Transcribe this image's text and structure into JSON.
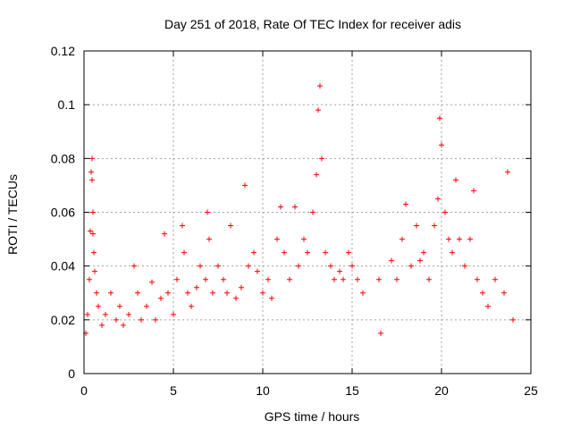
{
  "chart_data": {
    "type": "scatter",
    "title": "Day 251 of 2018, Rate Of TEC Index for receiver adis",
    "xlabel": "GPS time / hours",
    "ylabel": "ROTI / TECUs",
    "xlim": [
      0,
      25
    ],
    "ylim": [
      0,
      0.12
    ],
    "xticks": [
      0,
      5,
      10,
      15,
      20,
      25
    ],
    "xtick_labels": [
      "0",
      "5",
      "10",
      "15",
      "20",
      "25"
    ],
    "yticks": [
      0,
      0.02,
      0.04,
      0.06,
      0.08,
      0.1,
      0.12
    ],
    "ytick_labels": [
      "0",
      "0.02",
      "0.04",
      "0.06",
      "0.08",
      "0.1",
      "0.12"
    ],
    "grid": true,
    "marker": "+",
    "color": "#ff0000",
    "series": [
      {
        "name": "ROTI",
        "points": [
          [
            0.1,
            0.015
          ],
          [
            0.2,
            0.022
          ],
          [
            0.3,
            0.035
          ],
          [
            0.35,
            0.053
          ],
          [
            0.4,
            0.075
          ],
          [
            0.45,
            0.08
          ],
          [
            0.45,
            0.072
          ],
          [
            0.5,
            0.06
          ],
          [
            0.5,
            0.052
          ],
          [
            0.55,
            0.045
          ],
          [
            0.6,
            0.038
          ],
          [
            0.7,
            0.03
          ],
          [
            0.8,
            0.025
          ],
          [
            1.0,
            0.018
          ],
          [
            1.2,
            0.022
          ],
          [
            1.5,
            0.03
          ],
          [
            1.8,
            0.02
          ],
          [
            2.0,
            0.025
          ],
          [
            2.2,
            0.018
          ],
          [
            2.5,
            0.022
          ],
          [
            2.8,
            0.04
          ],
          [
            3.0,
            0.03
          ],
          [
            3.2,
            0.02
          ],
          [
            3.5,
            0.025
          ],
          [
            3.8,
            0.034
          ],
          [
            4.0,
            0.02
          ],
          [
            4.3,
            0.028
          ],
          [
            4.5,
            0.052
          ],
          [
            4.7,
            0.03
          ],
          [
            5.0,
            0.022
          ],
          [
            5.2,
            0.035
          ],
          [
            5.5,
            0.055
          ],
          [
            5.6,
            0.045
          ],
          [
            5.8,
            0.03
          ],
          [
            6.0,
            0.025
          ],
          [
            6.3,
            0.032
          ],
          [
            6.5,
            0.04
          ],
          [
            6.8,
            0.035
          ],
          [
            6.9,
            0.06
          ],
          [
            7.0,
            0.05
          ],
          [
            7.2,
            0.03
          ],
          [
            7.5,
            0.04
          ],
          [
            7.8,
            0.035
          ],
          [
            8.0,
            0.03
          ],
          [
            8.2,
            0.055
          ],
          [
            8.5,
            0.028
          ],
          [
            8.8,
            0.032
          ],
          [
            9.0,
            0.07
          ],
          [
            9.2,
            0.04
          ],
          [
            9.5,
            0.045
          ],
          [
            9.7,
            0.038
          ],
          [
            10.0,
            0.03
          ],
          [
            10.3,
            0.035
          ],
          [
            10.5,
            0.028
          ],
          [
            10.8,
            0.05
          ],
          [
            11.0,
            0.062
          ],
          [
            11.2,
            0.045
          ],
          [
            11.5,
            0.035
          ],
          [
            11.8,
            0.062
          ],
          [
            12.0,
            0.04
          ],
          [
            12.3,
            0.05
          ],
          [
            12.5,
            0.045
          ],
          [
            12.8,
            0.06
          ],
          [
            13.0,
            0.074
          ],
          [
            13.1,
            0.098
          ],
          [
            13.2,
            0.107
          ],
          [
            13.3,
            0.08
          ],
          [
            13.5,
            0.045
          ],
          [
            13.8,
            0.04
          ],
          [
            14.0,
            0.035
          ],
          [
            14.3,
            0.038
          ],
          [
            14.5,
            0.035
          ],
          [
            14.8,
            0.045
          ],
          [
            15.0,
            0.04
          ],
          [
            15.3,
            0.035
          ],
          [
            15.6,
            0.03
          ],
          [
            16.5,
            0.035
          ],
          [
            16.6,
            0.015
          ],
          [
            17.2,
            0.042
          ],
          [
            17.5,
            0.035
          ],
          [
            17.8,
            0.05
          ],
          [
            18.0,
            0.063
          ],
          [
            18.3,
            0.04
          ],
          [
            18.6,
            0.055
          ],
          [
            18.8,
            0.042
          ],
          [
            19.0,
            0.045
          ],
          [
            19.3,
            0.035
          ],
          [
            19.6,
            0.055
          ],
          [
            19.8,
            0.065
          ],
          [
            19.9,
            0.095
          ],
          [
            20.0,
            0.085
          ],
          [
            20.2,
            0.06
          ],
          [
            20.4,
            0.05
          ],
          [
            20.6,
            0.045
          ],
          [
            20.8,
            0.072
          ],
          [
            21.0,
            0.05
          ],
          [
            21.3,
            0.04
          ],
          [
            21.6,
            0.05
          ],
          [
            21.8,
            0.068
          ],
          [
            22.0,
            0.035
          ],
          [
            22.3,
            0.03
          ],
          [
            22.6,
            0.025
          ],
          [
            23.0,
            0.035
          ],
          [
            23.5,
            0.03
          ],
          [
            23.7,
            0.075
          ],
          [
            24.0,
            0.02
          ]
        ]
      }
    ]
  }
}
